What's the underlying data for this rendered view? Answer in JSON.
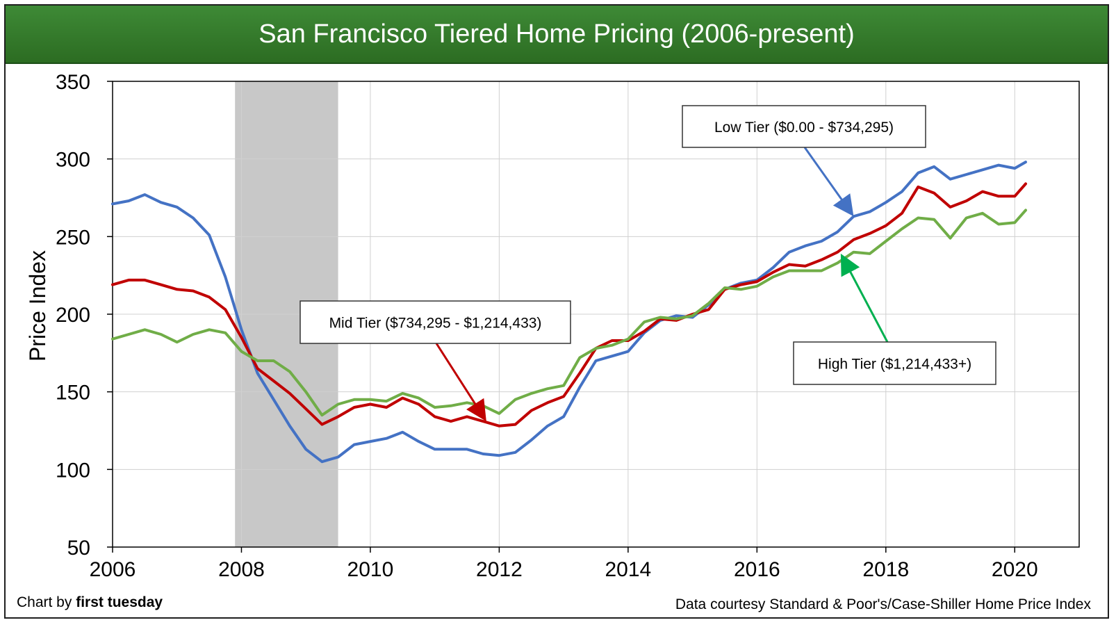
{
  "title": "San Francisco Tiered Home Pricing (2006-present)",
  "footer": {
    "credit_prefix": "Chart by ",
    "credit_bold": "first tuesday",
    "source": "Data courtesy Standard & Poor's/Case-Shiller Home Price Index"
  },
  "colors": {
    "low": "#4472c4",
    "mid": "#c00000",
    "high": "#70ad47",
    "high_arrow": "#00b050",
    "recession": "#c8c8c8",
    "title_bar": "#367c2b"
  },
  "chart_data": {
    "type": "line",
    "ylabel": "Price Index",
    "xlabel": "",
    "xlim": [
      2006,
      2021
    ],
    "ylim": [
      50,
      350
    ],
    "yticks": [
      50,
      100,
      150,
      200,
      250,
      300,
      350
    ],
    "xticks": [
      2006,
      2008,
      2010,
      2012,
      2014,
      2016,
      2018,
      2020
    ],
    "grid": true,
    "shaded_region": {
      "label": "",
      "x_start": 2007.9,
      "x_end": 2009.5
    },
    "series": [
      {
        "key": "low",
        "name": "Low Tier ($0.00 - $734,295)",
        "x": [
          2006.0,
          2006.25,
          2006.5,
          2006.75,
          2007.0,
          2007.25,
          2007.5,
          2007.75,
          2008.0,
          2008.25,
          2008.5,
          2008.75,
          2009.0,
          2009.25,
          2009.5,
          2009.75,
          2010.0,
          2010.25,
          2010.5,
          2010.75,
          2011.0,
          2011.25,
          2011.5,
          2011.75,
          2012.0,
          2012.25,
          2012.5,
          2012.75,
          2013.0,
          2013.25,
          2013.5,
          2013.75,
          2014.0,
          2014.25,
          2014.5,
          2014.75,
          2015.0,
          2015.25,
          2015.5,
          2015.75,
          2016.0,
          2016.25,
          2016.5,
          2016.75,
          2017.0,
          2017.25,
          2017.5,
          2017.75,
          2018.0,
          2018.25,
          2018.5,
          2018.75,
          2019.0,
          2019.25,
          2019.5,
          2019.75,
          2020.0,
          2020.17
        ],
        "y": [
          271,
          273,
          277,
          272,
          269,
          262,
          251,
          224,
          190,
          162,
          145,
          128,
          113,
          105,
          108,
          116,
          118,
          120,
          124,
          118,
          113,
          113,
          113,
          110,
          109,
          111,
          119,
          128,
          134,
          153,
          170,
          173,
          176,
          188,
          196,
          199,
          198,
          206,
          216,
          220,
          222,
          230,
          240,
          244,
          247,
          253,
          263,
          266,
          272,
          279,
          291,
          295,
          287,
          290,
          293,
          296,
          294,
          298
        ]
      },
      {
        "key": "mid",
        "name": "Mid Tier ($734,295 - $1,214,433)",
        "x": [
          2006.0,
          2006.25,
          2006.5,
          2006.75,
          2007.0,
          2007.25,
          2007.5,
          2007.75,
          2008.0,
          2008.25,
          2008.5,
          2008.75,
          2009.0,
          2009.25,
          2009.5,
          2009.75,
          2010.0,
          2010.25,
          2010.5,
          2010.75,
          2011.0,
          2011.25,
          2011.5,
          2011.75,
          2012.0,
          2012.25,
          2012.5,
          2012.75,
          2013.0,
          2013.25,
          2013.5,
          2013.75,
          2014.0,
          2014.25,
          2014.5,
          2014.75,
          2015.0,
          2015.25,
          2015.5,
          2015.75,
          2016.0,
          2016.25,
          2016.5,
          2016.75,
          2017.0,
          2017.25,
          2017.5,
          2017.75,
          2018.0,
          2018.25,
          2018.5,
          2018.75,
          2019.0,
          2019.25,
          2019.5,
          2019.75,
          2020.0,
          2020.17
        ],
        "y": [
          219,
          222,
          222,
          219,
          216,
          215,
          211,
          203,
          185,
          165,
          157,
          149,
          139,
          129,
          134,
          140,
          142,
          140,
          146,
          142,
          134,
          131,
          134,
          131,
          128,
          129,
          138,
          143,
          147,
          162,
          178,
          183,
          183,
          189,
          197,
          196,
          200,
          203,
          216,
          219,
          221,
          227,
          232,
          231,
          235,
          240,
          248,
          252,
          257,
          265,
          282,
          278,
          269,
          273,
          279,
          276,
          276,
          284
        ]
      },
      {
        "key": "high",
        "name": "High Tier ($1,214,433+)",
        "x": [
          2006.0,
          2006.25,
          2006.5,
          2006.75,
          2007.0,
          2007.25,
          2007.5,
          2007.75,
          2008.0,
          2008.25,
          2008.5,
          2008.75,
          2009.0,
          2009.25,
          2009.5,
          2009.75,
          2010.0,
          2010.25,
          2010.5,
          2010.75,
          2011.0,
          2011.25,
          2011.5,
          2011.75,
          2012.0,
          2012.25,
          2012.5,
          2012.75,
          2013.0,
          2013.25,
          2013.5,
          2013.75,
          2014.0,
          2014.25,
          2014.5,
          2014.75,
          2015.0,
          2015.25,
          2015.5,
          2015.75,
          2016.0,
          2016.25,
          2016.5,
          2016.75,
          2017.0,
          2017.25,
          2017.5,
          2017.75,
          2018.0,
          2018.25,
          2018.5,
          2018.75,
          2019.0,
          2019.25,
          2019.5,
          2019.75,
          2020.0,
          2020.17
        ],
        "y": [
          184,
          187,
          190,
          187,
          182,
          187,
          190,
          188,
          176,
          170,
          170,
          163,
          150,
          135,
          142,
          145,
          145,
          144,
          149,
          146,
          140,
          141,
          143,
          141,
          136,
          145,
          149,
          152,
          154,
          172,
          178,
          180,
          184,
          195,
          198,
          197,
          199,
          207,
          217,
          216,
          218,
          224,
          228,
          228,
          228,
          233,
          240,
          239,
          247,
          255,
          262,
          261,
          249,
          262,
          265,
          258,
          259,
          267
        ]
      }
    ],
    "annotations": [
      {
        "key": "low",
        "text": "Low Tier ($0.00 - $734,295)",
        "point_x": 2017.5,
        "point_y": 263
      },
      {
        "key": "mid",
        "text": "Mid Tier ($734,295 - $1,214,433)",
        "point_x": 2011.8,
        "point_y": 131
      },
      {
        "key": "high",
        "text": "High Tier ($1,214,433+)",
        "point_x": 2017.3,
        "point_y": 239
      }
    ]
  }
}
